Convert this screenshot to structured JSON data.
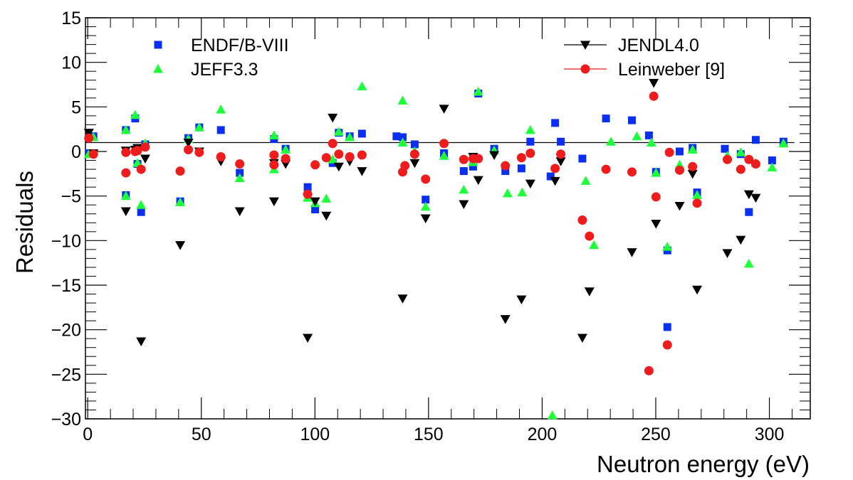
{
  "chart_data": {
    "type": "scatter",
    "xlabel": "Neutron energy (eV)",
    "ylabel": "Residuals",
    "xlim": [
      -1,
      318
    ],
    "ylim": [
      -30,
      15
    ],
    "x_ticks": [
      0,
      50,
      100,
      150,
      200,
      250,
      300
    ],
    "y_ticks": [
      -30,
      -25,
      -20,
      -15,
      -10,
      -5,
      0,
      5,
      10,
      15
    ],
    "x_tick_labels": [
      "0",
      "50",
      "100",
      "150",
      "200",
      "250",
      "300"
    ],
    "y_tick_labels": [
      "−30",
      "−25",
      "−20",
      "−15",
      "−10",
      "−5",
      "0",
      "5",
      "10",
      "15"
    ],
    "reference_line": {
      "y": 1.0,
      "x_range": [
        -1,
        311
      ]
    },
    "legend": [
      {
        "label": "ENDF/B-VIII",
        "series": "endf"
      },
      {
        "label": "JEFF3.3",
        "series": "jeff"
      },
      {
        "label": "JENDL4.0",
        "series": "jendl"
      },
      {
        "label": "Leinweber [9]",
        "series": "leinweber"
      }
    ],
    "series": [
      {
        "name": "ENDF/B-VIII",
        "key": "endf",
        "marker": "square",
        "color": "#0a2ff0",
        "points": [
          [
            0.5,
            -0.2
          ],
          [
            2.5,
            1.7
          ],
          [
            16.8,
            2.4
          ],
          [
            16.8,
            -4.9
          ],
          [
            20.9,
            3.7
          ],
          [
            21.9,
            -1.4
          ],
          [
            23.5,
            -6.8
          ],
          [
            25.3,
            0.8
          ],
          [
            40.7,
            -5.6
          ],
          [
            44.3,
            1.5
          ],
          [
            49.1,
            2.7
          ],
          [
            58.6,
            2.4
          ],
          [
            66.9,
            -2.4
          ],
          [
            82.0,
            1.4
          ],
          [
            87.1,
            0.3
          ],
          [
            96.8,
            -4.0
          ],
          [
            100.1,
            -6.5
          ],
          [
            107.8,
            -1.3
          ],
          [
            110.5,
            2.1
          ],
          [
            115.3,
            1.7
          ],
          [
            120.7,
            2.0
          ],
          [
            135.9,
            1.7
          ],
          [
            138.6,
            1.6
          ],
          [
            143.9,
            0.8
          ],
          [
            148.7,
            -5.4
          ],
          [
            156.8,
            -0.2
          ],
          [
            165.5,
            -2.2
          ],
          [
            169.6,
            -1.7
          ],
          [
            171.9,
            6.5
          ],
          [
            178.9,
            0.3
          ],
          [
            183.8,
            -2.2
          ],
          [
            190.9,
            -1.9
          ],
          [
            194.8,
            1.1
          ],
          [
            203.7,
            -2.8
          ],
          [
            205.7,
            3.2
          ],
          [
            208.2,
            1.1
          ],
          [
            217.7,
            -0.8
          ],
          [
            228.1,
            3.7
          ],
          [
            239.5,
            3.5
          ],
          [
            247.0,
            1.8
          ],
          [
            250.1,
            -2.3
          ],
          [
            255.1,
            -11.1
          ],
          [
            255.1,
            -19.7
          ],
          [
            260.5,
            0.0
          ],
          [
            266.2,
            0.4
          ],
          [
            268.2,
            -4.6
          ],
          [
            280.4,
            0.3
          ],
          [
            287.4,
            -0.3
          ],
          [
            291.0,
            -6.8
          ],
          [
            294.0,
            1.3
          ],
          [
            301.2,
            -1.0
          ],
          [
            306.2,
            1.1
          ]
        ]
      },
      {
        "name": "JEFF3.3",
        "key": "jeff",
        "marker": "triangle-up",
        "color": "#1eff3c",
        "points": [
          [
            0.5,
            -0.3
          ],
          [
            2.5,
            1.6
          ],
          [
            16.8,
            2.4
          ],
          [
            16.8,
            -5.0
          ],
          [
            20.9,
            4.1
          ],
          [
            21.9,
            -1.3
          ],
          [
            23.5,
            -6.0
          ],
          [
            25.3,
            0.9
          ],
          [
            40.7,
            -5.7
          ],
          [
            44.3,
            1.4
          ],
          [
            49.1,
            2.7
          ],
          [
            58.6,
            4.7
          ],
          [
            66.9,
            -3.0
          ],
          [
            82.0,
            1.8
          ],
          [
            82.0,
            -2.0
          ],
          [
            87.1,
            0.2
          ],
          [
            96.8,
            -5.2
          ],
          [
            100.1,
            -5.8
          ],
          [
            105.0,
            -5.3
          ],
          [
            107.8,
            -0.9
          ],
          [
            110.5,
            2.2
          ],
          [
            115.3,
            1.6
          ],
          [
            120.7,
            7.3
          ],
          [
            138.6,
            5.7
          ],
          [
            138.6,
            1.0
          ],
          [
            143.9,
            0.0
          ],
          [
            148.7,
            -6.2
          ],
          [
            156.8,
            -0.5
          ],
          [
            165.5,
            -4.3
          ],
          [
            169.6,
            -1.2
          ],
          [
            171.9,
            6.7
          ],
          [
            178.9,
            0.1
          ],
          [
            184.8,
            -4.7
          ],
          [
            191.2,
            -4.6
          ],
          [
            194.8,
            2.4
          ],
          [
            204.5,
            -29.6
          ],
          [
            219.2,
            -3.3
          ],
          [
            222.8,
            -10.5
          ],
          [
            230.3,
            1.1
          ],
          [
            241.7,
            1.7
          ],
          [
            248.1,
            1.0
          ],
          [
            250.1,
            -2.4
          ],
          [
            255.1,
            -10.7
          ],
          [
            260.5,
            -1.5
          ],
          [
            266.2,
            0.2
          ],
          [
            268.2,
            -4.9
          ],
          [
            281.5,
            -0.5
          ],
          [
            287.4,
            -0.1
          ],
          [
            291.0,
            -12.6
          ],
          [
            294.0,
            -1.3
          ],
          [
            301.2,
            -1.8
          ],
          [
            306.2,
            0.9
          ]
        ]
      },
      {
        "name": "JENDL4.0",
        "key": "jendl",
        "marker": "triangle-down",
        "color": "#000000",
        "points": [
          [
            0.5,
            2.1
          ],
          [
            2.5,
            -0.2
          ],
          [
            16.8,
            -6.7
          ],
          [
            16.8,
            0.1
          ],
          [
            20.9,
            0.2
          ],
          [
            21.9,
            0.4
          ],
          [
            23.5,
            -21.3
          ],
          [
            25.3,
            -0.8
          ],
          [
            40.7,
            -10.5
          ],
          [
            44.3,
            1.0
          ],
          [
            49.1,
            0.0
          ],
          [
            58.6,
            -1.1
          ],
          [
            66.9,
            -6.7
          ],
          [
            82.0,
            -5.6
          ],
          [
            82.0,
            -1.3
          ],
          [
            87.1,
            -1.4
          ],
          [
            96.8,
            -20.9
          ],
          [
            100.1,
            -5.6
          ],
          [
            105.0,
            -7.2
          ],
          [
            107.8,
            3.8
          ],
          [
            110.5,
            -1.7
          ],
          [
            115.3,
            -1.1
          ],
          [
            120.7,
            -2.2
          ],
          [
            138.6,
            -16.5
          ],
          [
            143.9,
            -1.3
          ],
          [
            148.7,
            -7.5
          ],
          [
            156.8,
            4.8
          ],
          [
            165.5,
            -5.9
          ],
          [
            169.6,
            -0.6
          ],
          [
            171.9,
            -3.2
          ],
          [
            178.9,
            -0.4
          ],
          [
            183.8,
            -18.8
          ],
          [
            190.9,
            -16.6
          ],
          [
            194.8,
            -3.6
          ],
          [
            205.7,
            -3.3
          ],
          [
            208.2,
            -1.1
          ],
          [
            217.7,
            -20.9
          ],
          [
            220.8,
            -15.7
          ],
          [
            239.5,
            -11.3
          ],
          [
            249.1,
            7.7
          ],
          [
            250.1,
            -8.1
          ],
          [
            260.5,
            -6.1
          ],
          [
            266.2,
            -2.5
          ],
          [
            268.2,
            -15.5
          ],
          [
            281.5,
            -11.4
          ],
          [
            287.4,
            -9.9
          ],
          [
            291.0,
            -4.8
          ],
          [
            294.0,
            -5.2
          ]
        ]
      },
      {
        "name": "Leinweber [9]",
        "key": "leinweber",
        "marker": "circle",
        "color": "#ee1c1c",
        "points": [
          [
            0.5,
            1.5
          ],
          [
            2.5,
            -0.3
          ],
          [
            16.8,
            -2.4
          ],
          [
            16.8,
            -0.1
          ],
          [
            20.9,
            0.0
          ],
          [
            21.9,
            0.1
          ],
          [
            23.5,
            -2.0
          ],
          [
            25.3,
            0.5
          ],
          [
            40.7,
            -2.2
          ],
          [
            44.3,
            0.2
          ],
          [
            49.1,
            -0.1
          ],
          [
            58.6,
            -0.6
          ],
          [
            66.9,
            -1.4
          ],
          [
            82.0,
            -1.5
          ],
          [
            82.0,
            -0.4
          ],
          [
            87.1,
            -0.8
          ],
          [
            96.8,
            -4.8
          ],
          [
            100.1,
            -1.5
          ],
          [
            105.0,
            -0.7
          ],
          [
            107.8,
            0.9
          ],
          [
            110.5,
            -0.3
          ],
          [
            115.3,
            -0.6
          ],
          [
            120.7,
            -0.4
          ],
          [
            138.6,
            -2.3
          ],
          [
            139.6,
            -1.6
          ],
          [
            143.9,
            -0.3
          ],
          [
            148.7,
            -3.1
          ],
          [
            156.8,
            0.9
          ],
          [
            165.5,
            -0.9
          ],
          [
            169.6,
            -0.8
          ],
          [
            171.9,
            -0.8
          ],
          [
            183.8,
            -1.6
          ],
          [
            190.9,
            -0.7
          ],
          [
            194.8,
            -0.2
          ],
          [
            205.7,
            -1.9
          ],
          [
            208.2,
            -0.3
          ],
          [
            217.7,
            -7.7
          ],
          [
            220.8,
            -9.5
          ],
          [
            228.1,
            -2.0
          ],
          [
            239.5,
            -2.3
          ],
          [
            247.0,
            -24.6
          ],
          [
            249.1,
            6.2
          ],
          [
            250.1,
            -5.1
          ],
          [
            255.1,
            -21.7
          ],
          [
            256.0,
            -0.1
          ],
          [
            260.5,
            -2.1
          ],
          [
            266.2,
            -1.7
          ],
          [
            268.2,
            -5.8
          ],
          [
            281.5,
            -0.9
          ],
          [
            287.4,
            -2.0
          ],
          [
            291.0,
            -0.9
          ],
          [
            294.0,
            -1.4
          ]
        ]
      }
    ]
  }
}
